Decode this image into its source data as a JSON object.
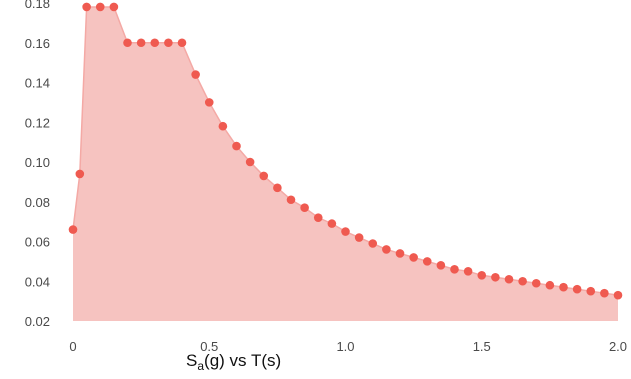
{
  "chart_data": {
    "type": "area",
    "title": "",
    "xlabel": "",
    "ylabel": "",
    "xlim": [
      0,
      2.0
    ],
    "ylim": [
      0.02,
      0.18
    ],
    "x_ticks": [
      0,
      0.5,
      1.0,
      1.5,
      2.0
    ],
    "x_tick_labels": [
      "0",
      "0.5",
      "1.0",
      "1.5",
      "2.0"
    ],
    "y_ticks": [
      0.02,
      0.04,
      0.06,
      0.08,
      0.1,
      0.12,
      0.14,
      0.16,
      0.18
    ],
    "y_tick_labels": [
      "0.02",
      "0.04",
      "0.06",
      "0.08",
      "0.10",
      "0.12",
      "0.14",
      "0.16",
      "0.18"
    ],
    "caption": {
      "prefix": "S",
      "subscript": "a",
      "suffix": "(g) vs T(s)"
    },
    "grid": false,
    "legend": "none",
    "colors": {
      "fill": "#f6c3c0",
      "line": "#f4a9a5",
      "marker": "#ef5a50"
    },
    "series": [
      {
        "x": [
          0,
          0.025,
          0.05,
          0.1,
          0.15,
          0.2,
          0.25,
          0.3,
          0.35,
          0.4,
          0.45,
          0.5,
          0.55,
          0.6,
          0.65,
          0.7,
          0.75,
          0.8,
          0.85,
          0.9,
          0.95,
          1.0,
          1.05,
          1.1,
          1.15,
          1.2,
          1.25,
          1.3,
          1.35,
          1.4,
          1.45,
          1.5,
          1.55,
          1.6,
          1.65,
          1.7,
          1.75,
          1.8,
          1.85,
          1.9,
          1.95,
          2.0
        ],
        "y": [
          0.066,
          0.094,
          0.178,
          0.178,
          0.178,
          0.16,
          0.16,
          0.16,
          0.16,
          0.16,
          0.144,
          0.13,
          0.118,
          0.108,
          0.1,
          0.093,
          0.087,
          0.081,
          0.077,
          0.072,
          0.069,
          0.065,
          0.062,
          0.059,
          0.056,
          0.054,
          0.052,
          0.05,
          0.048,
          0.046,
          0.045,
          0.043,
          0.042,
          0.041,
          0.04,
          0.039,
          0.038,
          0.037,
          0.036,
          0.035,
          0.034,
          0.033
        ]
      }
    ]
  }
}
